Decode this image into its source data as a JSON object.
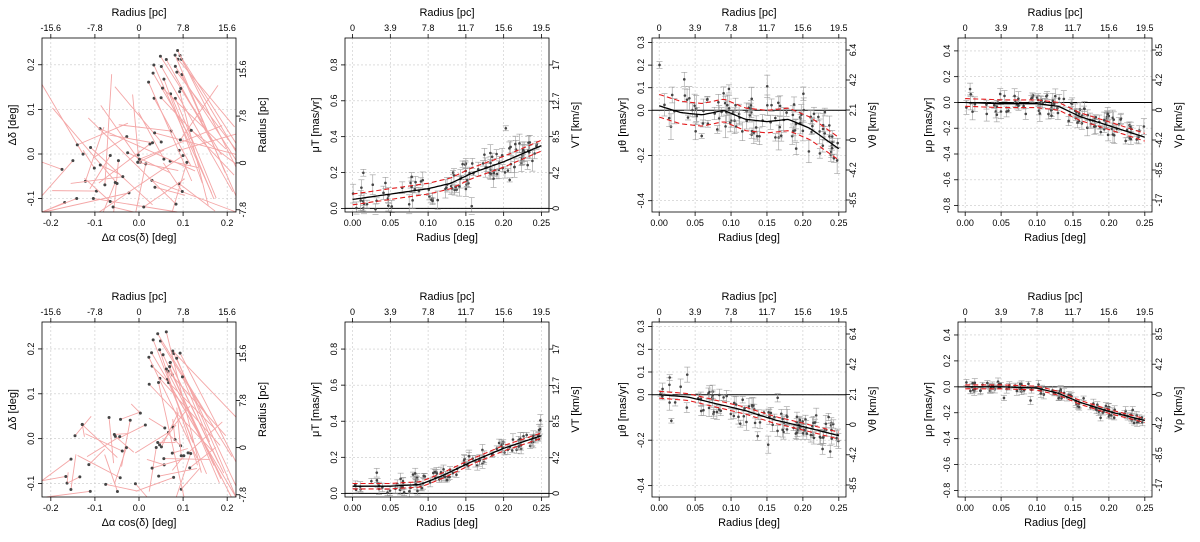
{
  "chart_data": [
    {
      "type": "vector",
      "id": "r1c1",
      "top_axis_label": "Radius [pc]",
      "top_ticks": [
        "-15.6",
        "-7.8",
        "0",
        "7.8",
        "15.6"
      ],
      "xlabel": "Δα cos(δ) [deg]",
      "ylabel": "Δδ [deg]",
      "right_label": "Radius [pc]",
      "right_ticks": [
        "15.6",
        "7.8",
        "0",
        "-7.8"
      ],
      "xticks": [
        "-0.2",
        "-0.1",
        "0.0",
        "0.1",
        "0.2"
      ],
      "yticks": [
        "-0.1",
        "0.0",
        "0.1",
        "0.2"
      ],
      "xlim": [
        -0.22,
        0.22
      ],
      "ylim": [
        -0.13,
        0.26
      ],
      "seed": 11,
      "spread": "wide"
    },
    {
      "type": "line",
      "id": "r1c2",
      "top_axis_label": "Radius [pc]",
      "top_ticks": [
        "0",
        "3.9",
        "7.8",
        "11.7",
        "15.6",
        "19.5"
      ],
      "xlabel": "Radius [deg]",
      "ylabel": "μT [mas/yr]",
      "right_label": "VT [km/s]",
      "right_ticks": [
        "0",
        "4.2",
        "8.5",
        "12.7",
        "17"
      ],
      "xticks": [
        "0.00",
        "0.05",
        "0.10",
        "0.15",
        "0.20",
        "0.25"
      ],
      "yticks": [
        "0.0",
        "0.2",
        "0.4",
        "0.6",
        "0.8"
      ],
      "xlim": [
        -0.01,
        0.26
      ],
      "ylim": [
        -0.02,
        0.95
      ],
      "trend": {
        "x": [
          0.0,
          0.05,
          0.1,
          0.13,
          0.16,
          0.2,
          0.25
        ],
        "y": [
          0.05,
          0.08,
          0.11,
          0.14,
          0.2,
          0.26,
          0.35
        ]
      },
      "band": 0.03,
      "noise": 0.08,
      "seed": 21
    },
    {
      "type": "line",
      "id": "r1c3",
      "top_axis_label": "Radius [pc]",
      "top_ticks": [
        "0",
        "3.9",
        "7.8",
        "11.7",
        "15.6",
        "19.5"
      ],
      "xlabel": "Radius [deg]",
      "ylabel": "μθ [mas/yr]",
      "right_label": "Vθ [km/s]",
      "right_ticks": [
        "6.4",
        "4.2",
        "2.1",
        "0",
        "-4.2",
        "-8.5"
      ],
      "xticks": [
        "0.00",
        "0.05",
        "0.10",
        "0.15",
        "0.20",
        "0.25"
      ],
      "yticks": [
        "-0.4",
        "-0.2",
        "0.0",
        "0.1",
        "0.2",
        "0.3"
      ],
      "xlim": [
        -0.01,
        0.26
      ],
      "ylim": [
        -0.45,
        0.32
      ],
      "trend": {
        "x": [
          0.0,
          0.03,
          0.06,
          0.09,
          0.12,
          0.15,
          0.18,
          0.21,
          0.25
        ],
        "y": [
          0.02,
          -0.01,
          -0.02,
          0.0,
          -0.04,
          -0.05,
          -0.04,
          -0.08,
          -0.17
        ]
      },
      "band": 0.05,
      "noise": 0.08,
      "seed": 31
    },
    {
      "type": "line",
      "id": "r1c4",
      "top_axis_label": "Radius [pc]",
      "top_ticks": [
        "0",
        "3.9",
        "7.8",
        "11.7",
        "15.6",
        "19.5"
      ],
      "xlabel": "Radius [deg]",
      "ylabel": "μρ [mas/yr]",
      "right_label": "Vρ [km/s]",
      "right_ticks": [
        "8.5",
        "4.2",
        "0",
        "-4.2",
        "-8.5",
        "-17"
      ],
      "xticks": [
        "0.00",
        "0.05",
        "0.10",
        "0.15",
        "0.20",
        "0.25"
      ],
      "yticks": [
        "-0.8",
        "-0.6",
        "-0.4",
        "-0.2",
        "0.0",
        "0.2",
        "0.4"
      ],
      "xlim": [
        -0.01,
        0.26
      ],
      "ylim": [
        -0.85,
        0.5
      ],
      "trend": {
        "x": [
          0.0,
          0.05,
          0.1,
          0.13,
          0.16,
          0.2,
          0.25
        ],
        "y": [
          0.0,
          -0.01,
          -0.01,
          -0.03,
          -0.11,
          -0.18,
          -0.27
        ]
      },
      "band": 0.03,
      "noise": 0.09,
      "seed": 41
    },
    {
      "type": "vector",
      "id": "r2c1",
      "top_axis_label": "Radius [pc]",
      "top_ticks": [
        "-15.6",
        "-7.8",
        "0",
        "7.8",
        "15.6"
      ],
      "xlabel": "Δα cos(δ) [deg]",
      "ylabel": "Δδ [deg]",
      "right_label": "Radius [pc]",
      "right_ticks": [
        "15.6",
        "7.8",
        "0",
        "-7.8"
      ],
      "xticks": [
        "-0.2",
        "-0.1",
        "0.0",
        "0.1",
        "0.2"
      ],
      "yticks": [
        "-0.1",
        "0.0",
        "0.1",
        "0.2"
      ],
      "xlim": [
        -0.22,
        0.22
      ],
      "ylim": [
        -0.13,
        0.26
      ],
      "seed": 51,
      "spread": "narrow"
    },
    {
      "type": "line",
      "id": "r2c2",
      "top_axis_label": "Radius [pc]",
      "top_ticks": [
        "0",
        "3.9",
        "7.8",
        "11.7",
        "15.6",
        "19.5"
      ],
      "xlabel": "Radius [deg]",
      "ylabel": "μT [mas/yr]",
      "right_label": "VT [km/s]",
      "right_ticks": [
        "0",
        "4.2",
        "8.5",
        "12.7",
        "17"
      ],
      "xticks": [
        "0.00",
        "0.05",
        "0.10",
        "0.15",
        "0.20",
        "0.25"
      ],
      "yticks": [
        "0.0",
        "0.2",
        "0.4",
        "0.6",
        "0.8"
      ],
      "xlim": [
        -0.01,
        0.26
      ],
      "ylim": [
        -0.02,
        0.95
      ],
      "trend": {
        "x": [
          0.0,
          0.05,
          0.09,
          0.12,
          0.16,
          0.2,
          0.25
        ],
        "y": [
          0.04,
          0.04,
          0.05,
          0.1,
          0.18,
          0.25,
          0.32
        ]
      },
      "band": 0.015,
      "noise": 0.04,
      "seed": 61
    },
    {
      "type": "line",
      "id": "r2c3",
      "top_axis_label": "Radius [pc]",
      "top_ticks": [
        "0",
        "3.9",
        "7.8",
        "11.7",
        "15.6",
        "19.5"
      ],
      "xlabel": "Radius [deg]",
      "ylabel": "μθ [mas/yr]",
      "right_label": "Vθ [km/s]",
      "right_ticks": [
        "6.4",
        "4.2",
        "2.1",
        "0",
        "-4.2",
        "-8.5"
      ],
      "xticks": [
        "0.00",
        "0.05",
        "0.10",
        "0.15",
        "0.20",
        "0.25"
      ],
      "yticks": [
        "-0.4",
        "-0.2",
        "0.0",
        "0.1",
        "0.2",
        "0.3"
      ],
      "xlim": [
        -0.01,
        0.26
      ],
      "ylim": [
        -0.45,
        0.32
      ],
      "trend": {
        "x": [
          0.0,
          0.04,
          0.08,
          0.12,
          0.16,
          0.2,
          0.25
        ],
        "y": [
          0.0,
          -0.01,
          -0.04,
          -0.07,
          -0.11,
          -0.14,
          -0.18
        ]
      },
      "band": 0.015,
      "noise": 0.05,
      "seed": 71
    },
    {
      "type": "line",
      "id": "r2c4",
      "top_axis_label": "Radius [pc]",
      "top_ticks": [
        "0",
        "3.9",
        "7.8",
        "11.7",
        "15.6",
        "19.5"
      ],
      "xlabel": "Radius [deg]",
      "ylabel": "μρ [mas/yr]",
      "right_label": "Vρ [km/s]",
      "right_ticks": [
        "8.5",
        "4.2",
        "0",
        "-4.2",
        "-8.5",
        "-17"
      ],
      "xticks": [
        "0.00",
        "0.05",
        "0.10",
        "0.15",
        "0.20",
        "0.25"
      ],
      "yticks": [
        "-0.8",
        "-0.6",
        "-0.4",
        "-0.2",
        "0.0",
        "0.2",
        "0.4"
      ],
      "xlim": [
        -0.01,
        0.26
      ],
      "ylim": [
        -0.85,
        0.5
      ],
      "trend": {
        "x": [
          0.0,
          0.05,
          0.1,
          0.13,
          0.16,
          0.2,
          0.25
        ],
        "y": [
          0.0,
          0.0,
          -0.01,
          -0.05,
          -0.12,
          -0.19,
          -0.26
        ]
      },
      "band": 0.015,
      "noise": 0.04,
      "seed": 81
    }
  ],
  "colors": {
    "trend": "#000000",
    "band": "#e31a1c",
    "points": "#444444",
    "errorbars": "#9a9a9a",
    "vectors": "#f4a6a6",
    "grid": "#c8c8c8"
  }
}
